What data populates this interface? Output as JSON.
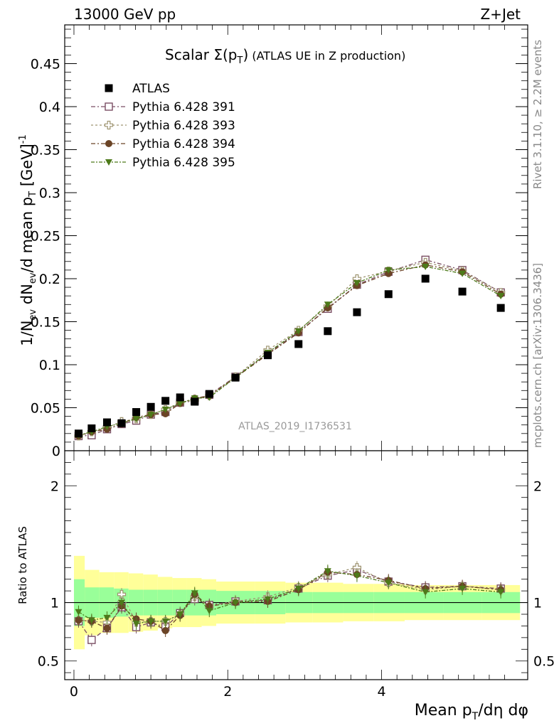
{
  "header": {
    "left": "13000 GeV pp",
    "right": "Z+Jet"
  },
  "side_labels": {
    "rivet": "Rivet 3.1.10, ≥ 2.2M events",
    "mcplots": "mcplots.cern.ch [arXiv:1306.3436]"
  },
  "chart_data": [
    {
      "type": "scatter",
      "panel": "main",
      "title": "Scalar Σ(p_T) (ATLAS UE in Z production)",
      "title_parts": {
        "main": "Scalar Σ(p",
        "sub": "T",
        "close": ")",
        "rest": " (ATLAS UE in Z production)"
      },
      "analysis_label": "ATLAS_2019_I1736531",
      "ylabel": "1/N_ev dN_ev/d mean p_T [GeV]^-1",
      "ylabel_parts": {
        "a": "1/N",
        "a_sub": "ev",
        "b": " dN",
        "b_sub": "ev",
        "c": "/d mean p",
        "c_sub": "T",
        "d": " [GeV]",
        "d_sup": "-1"
      },
      "xlim": [
        -0.12,
        5.9
      ],
      "ylim": [
        0,
        0.495
      ],
      "y_ticks": [
        "0",
        "0.05",
        "0.1",
        "0.15",
        "0.2",
        "0.25",
        "0.3",
        "0.35",
        "0.4",
        "0.45"
      ],
      "legend_position": "top-left",
      "x": [
        0.06,
        0.23,
        0.43,
        0.62,
        0.81,
        1.0,
        1.19,
        1.38,
        1.57,
        1.76,
        2.1,
        2.52,
        2.92,
        3.3,
        3.68,
        4.09,
        4.57,
        5.05,
        5.55
      ],
      "reference": {
        "name": "ATLAS",
        "color": "#000000",
        "values": [
          0.02,
          0.026,
          0.033,
          0.032,
          0.045,
          0.051,
          0.058,
          0.062,
          0.057,
          0.066,
          0.085,
          0.111,
          0.124,
          0.139,
          0.161,
          0.182,
          0.2,
          0.185,
          0.166
        ]
      },
      "series": [
        {
          "name": "Pythia 6.428 391",
          "color": "#7a4e63",
          "marker": "open-square",
          "values": [
            0.017,
            0.018,
            0.025,
            0.031,
            0.035,
            0.042,
            0.045,
            0.056,
            0.058,
            0.065,
            0.086,
            0.113,
            0.138,
            0.165,
            0.193,
            0.208,
            0.222,
            0.21,
            0.184
          ]
        },
        {
          "name": "Pythia 6.428 393",
          "color": "#9e9470",
          "marker": "open-cross",
          "values": [
            0.017,
            0.022,
            0.027,
            0.034,
            0.037,
            0.042,
            0.048,
            0.056,
            0.059,
            0.064,
            0.086,
            0.117,
            0.14,
            0.168,
            0.2,
            0.209,
            0.219,
            0.209,
            0.184
          ]
        },
        {
          "name": "Pythia 6.428 394",
          "color": "#6b4426",
          "marker": "filled-circle",
          "values": [
            0.017,
            0.022,
            0.025,
            0.031,
            0.039,
            0.042,
            0.043,
            0.055,
            0.061,
            0.064,
            0.085,
            0.112,
            0.137,
            0.166,
            0.192,
            0.206,
            0.216,
            0.208,
            0.182
          ]
        },
        {
          "name": "Pythia 6.428 395",
          "color": "#4d7a1a",
          "marker": "filled-triangle-down",
          "values": [
            0.018,
            0.022,
            0.028,
            0.032,
            0.037,
            0.042,
            0.048,
            0.055,
            0.061,
            0.062,
            0.085,
            0.114,
            0.139,
            0.17,
            0.195,
            0.21,
            0.214,
            0.206,
            0.18
          ]
        }
      ]
    },
    {
      "type": "scatter",
      "panel": "ratio",
      "ylabel": "Ratio to ATLAS",
      "xlabel": "Mean p_T/dη dφ",
      "xlabel_parts": {
        "a": "Mean p",
        "a_sub": "T",
        "b": "/dη dφ"
      },
      "xlim": [
        -0.12,
        5.9
      ],
      "ylim": [
        0.34,
        2.3
      ],
      "x_ticks": [
        "0",
        "2",
        "4"
      ],
      "y_ticks": [
        "0.5",
        "1",
        "2"
      ],
      "bin_edges": [
        0,
        0.14,
        0.33,
        0.52,
        0.71,
        0.9,
        1.09,
        1.28,
        1.47,
        1.66,
        1.85,
        2.35,
        2.75,
        3.1,
        3.5,
        3.9,
        4.3,
        4.8,
        5.3,
        5.8
      ],
      "band_stat": [
        0.2,
        0.13,
        0.13,
        0.12,
        0.11,
        0.11,
        0.11,
        0.11,
        0.11,
        0.11,
        0.1,
        0.1,
        0.09,
        0.09,
        0.09,
        0.09,
        0.09,
        0.09,
        0.09
      ],
      "band_total": [
        0.4,
        0.28,
        0.26,
        0.26,
        0.25,
        0.24,
        0.22,
        0.21,
        0.21,
        0.2,
        0.18,
        0.18,
        0.17,
        0.17,
        0.16,
        0.16,
        0.15,
        0.15,
        0.15
      ],
      "band_colors": {
        "total": "#ffff99",
        "stat": "#99ff99"
      },
      "series": [
        {
          "name": "Pythia 6.428 391",
          "color": "#7a4e63",
          "marker": "open-square",
          "values": [
            0.84,
            0.68,
            0.78,
            0.96,
            0.79,
            0.83,
            0.79,
            0.91,
            1.03,
            0.98,
            1.01,
            1.02,
            1.12,
            1.23,
            1.28,
            1.18,
            1.13,
            1.14,
            1.12
          ]
        },
        {
          "name": "Pythia 6.428 393",
          "color": "#9e9470",
          "marker": "open-cross",
          "values": [
            0.85,
            0.84,
            0.83,
            1.07,
            0.83,
            0.84,
            0.84,
            0.9,
            1.05,
            0.97,
            1.01,
            1.05,
            1.13,
            1.24,
            1.3,
            1.17,
            1.11,
            1.14,
            1.11
          ]
        },
        {
          "name": "Pythia 6.428 394",
          "color": "#6b4426",
          "marker": "filled-circle",
          "values": [
            0.85,
            0.84,
            0.78,
            0.97,
            0.86,
            0.84,
            0.76,
            0.89,
            1.07,
            0.97,
            1.0,
            1.01,
            1.11,
            1.26,
            1.24,
            1.19,
            1.12,
            1.14,
            1.11
          ]
        },
        {
          "name": "Pythia 6.428 395",
          "color": "#4d7a1a",
          "marker": "filled-triangle-down",
          "values": [
            0.92,
            0.85,
            0.87,
            1.0,
            0.82,
            0.84,
            0.84,
            0.9,
            1.08,
            0.93,
            1.0,
            1.03,
            1.12,
            1.27,
            1.23,
            1.17,
            1.09,
            1.12,
            1.09
          ]
        }
      ]
    }
  ]
}
